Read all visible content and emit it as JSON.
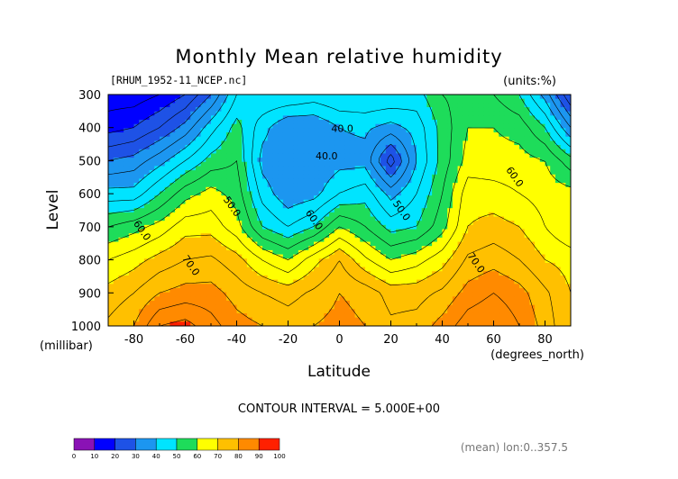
{
  "chart_data": {
    "type": "contour",
    "title": "Monthly Mean relative humidity",
    "subtitle_left": "[RHUM_1952-11_NCEP.nc]",
    "subtitle_right": "(units:%)",
    "xlabel": "Latitude",
    "x_units": "(degrees_north)",
    "ylabel": "Level",
    "y_units": "(millibar)",
    "xlim": [
      -90,
      90
    ],
    "ylim": [
      1000,
      300
    ],
    "x_ticks": [
      -80,
      -60,
      -40,
      -20,
      0,
      20,
      40,
      60,
      80
    ],
    "y_ticks": [
      300,
      400,
      500,
      600,
      700,
      800,
      900,
      1000
    ],
    "contour_interval_text": "CONTOUR INTERVAL = 5.000E+00",
    "footer_note": "(mean) lon:0..357.5",
    "contour_labels": [
      "40.0",
      "40.0",
      "50.0",
      "50.0",
      "60.0",
      "60.0",
      "60.0",
      "70.0",
      "70.0"
    ],
    "colorbar": {
      "ticks": [
        "0",
        "10",
        "20",
        "30",
        "40",
        "50",
        "60",
        "70",
        "80",
        "90",
        "100"
      ],
      "colors": [
        "#8a12b5",
        "#0000ff",
        "#1e52e6",
        "#1c96f0",
        "#00e4ff",
        "#1edc5a",
        "#ffff00",
        "#ffc000",
        "#ff8a00",
        "#ff2000"
      ]
    },
    "lat": [
      -90,
      -80,
      -70,
      -60,
      -50,
      -40,
      -30,
      -20,
      -10,
      0,
      10,
      20,
      30,
      40,
      50,
      60,
      70,
      80,
      90
    ],
    "levels": [
      300,
      400,
      500,
      600,
      700,
      800,
      900,
      1000
    ],
    "values": [
      [
        12,
        12,
        15,
        20,
        30,
        45,
        50,
        50,
        48,
        50,
        50,
        50,
        48,
        55,
        57,
        55,
        50,
        38,
        20
      ],
      [
        18,
        20,
        25,
        32,
        43,
        52,
        42,
        35,
        35,
        40,
        41,
        38,
        42,
        52,
        60,
        60,
        58,
        50,
        35
      ],
      [
        30,
        32,
        38,
        45,
        52,
        55,
        38,
        35,
        35,
        38,
        38,
        22,
        40,
        52,
        62,
        62,
        62,
        60,
        52
      ],
      [
        42,
        42,
        50,
        58,
        62,
        58,
        43,
        36,
        38,
        45,
        48,
        38,
        45,
        55,
        68,
        67,
        65,
        63,
        62
      ],
      [
        55,
        58,
        62,
        68,
        68,
        62,
        50,
        45,
        50,
        60,
        55,
        48,
        50,
        58,
        70,
        72,
        70,
        65,
        60
      ],
      [
        65,
        68,
        72,
        75,
        76,
        72,
        65,
        60,
        68,
        75,
        66,
        60,
        63,
        68,
        76,
        78,
        75,
        70,
        68
      ],
      [
        72,
        75,
        80,
        82,
        82,
        78,
        75,
        73,
        76,
        80,
        78,
        73,
        73,
        76,
        82,
        85,
        82,
        76,
        70
      ],
      [
        76,
        80,
        90,
        92,
        87,
        82,
        80,
        78,
        80,
        82,
        80,
        76,
        77,
        82,
        88,
        90,
        85,
        78,
        70
      ]
    ]
  }
}
